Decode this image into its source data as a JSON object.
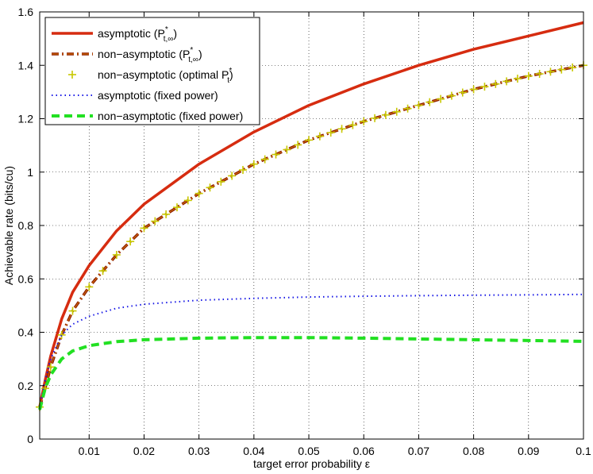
{
  "chart_data": {
    "type": "line",
    "xlabel": "target error probability ε",
    "ylabel": "Achievable rate (bits/cu)",
    "xlim": [
      0.001,
      0.1
    ],
    "ylim": [
      0,
      1.6
    ],
    "grid": true,
    "grid_style": "dotted",
    "legend_position": "top-left",
    "x_ticks": [
      0.01,
      0.02,
      0.03,
      0.04,
      0.05,
      0.06,
      0.07,
      0.08,
      0.09,
      0.1
    ],
    "x_tick_labels": [
      "0.01",
      "0.02",
      "0.03",
      "0.04",
      "0.05",
      "0.06",
      "0.07",
      "0.08",
      "0.09",
      "0.1"
    ],
    "y_ticks": [
      0,
      0.2,
      0.4,
      0.6,
      0.8,
      1.0,
      1.2,
      1.4,
      1.6
    ],
    "y_tick_labels": [
      "0",
      "0.2",
      "0.4",
      "0.6",
      "0.8",
      "1",
      "1.2",
      "1.4",
      "1.6"
    ],
    "series": [
      {
        "name": "asymptotic (P*t,∞)",
        "legend_main": "asymptotic (P",
        "legend_sup": "*",
        "legend_sub": "t,∞",
        "legend_tail": ")",
        "color": "#d62c10",
        "style": "solid",
        "x": [
          0.001,
          0.002,
          0.003,
          0.005,
          0.007,
          0.01,
          0.015,
          0.02,
          0.03,
          0.04,
          0.05,
          0.06,
          0.07,
          0.08,
          0.09,
          0.1
        ],
        "values": [
          0.12,
          0.22,
          0.31,
          0.45,
          0.55,
          0.65,
          0.78,
          0.88,
          1.03,
          1.15,
          1.25,
          1.33,
          1.4,
          1.46,
          1.51,
          1.56
        ]
      },
      {
        "name": "non-asymptotic (P*t,∞)",
        "legend_main": "non−asymptotic (P",
        "legend_sup": "*",
        "legend_sub": "t,∞",
        "legend_tail": ")",
        "color": "#8b1a00",
        "accent": "#cc6a00",
        "style": "dashdot",
        "x": [
          0.001,
          0.002,
          0.003,
          0.005,
          0.007,
          0.01,
          0.015,
          0.02,
          0.03,
          0.04,
          0.05,
          0.06,
          0.07,
          0.08,
          0.09,
          0.1
        ],
        "values": [
          0.12,
          0.19,
          0.27,
          0.39,
          0.48,
          0.57,
          0.69,
          0.79,
          0.92,
          1.03,
          1.12,
          1.19,
          1.25,
          1.31,
          1.36,
          1.4
        ]
      },
      {
        "name": "non-asymptotic (optimal P*t)",
        "legend_main": "non−asymptotic (optimal P",
        "legend_sup": "*",
        "legend_sub": "t",
        "legend_tail": ")",
        "color": "#c8c800",
        "style": "marker-plus",
        "x": [
          0.001,
          0.002,
          0.003,
          0.005,
          0.007,
          0.01,
          0.015,
          0.02,
          0.03,
          0.04,
          0.05,
          0.06,
          0.07,
          0.08,
          0.09,
          0.1
        ],
        "values": [
          0.12,
          0.19,
          0.27,
          0.39,
          0.48,
          0.57,
          0.69,
          0.79,
          0.92,
          1.03,
          1.12,
          1.19,
          1.25,
          1.31,
          1.36,
          1.4
        ]
      },
      {
        "name": "asymptotic (fixed power)",
        "legend_main": "asymptotic (fixed power)",
        "legend_sup": "",
        "legend_sub": "",
        "legend_tail": "",
        "color": "#1a1ae6",
        "style": "dotted",
        "x": [
          0.001,
          0.002,
          0.003,
          0.005,
          0.007,
          0.01,
          0.015,
          0.02,
          0.03,
          0.04,
          0.05,
          0.06,
          0.07,
          0.08,
          0.09,
          0.1
        ],
        "values": [
          0.12,
          0.22,
          0.3,
          0.39,
          0.43,
          0.46,
          0.49,
          0.505,
          0.52,
          0.527,
          0.532,
          0.535,
          0.537,
          0.539,
          0.54,
          0.542
        ]
      },
      {
        "name": "non-asymptotic (fixed power)",
        "legend_main": "non−asymptotic (fixed power)",
        "legend_sup": "",
        "legend_sub": "",
        "legend_tail": "",
        "color": "#22e022",
        "style": "dashed",
        "x": [
          0.001,
          0.002,
          0.003,
          0.005,
          0.007,
          0.01,
          0.015,
          0.02,
          0.03,
          0.04,
          0.05,
          0.06,
          0.07,
          0.08,
          0.09,
          0.1
        ],
        "values": [
          0.11,
          0.19,
          0.24,
          0.3,
          0.33,
          0.35,
          0.365,
          0.372,
          0.378,
          0.38,
          0.38,
          0.378,
          0.375,
          0.372,
          0.369,
          0.366
        ]
      }
    ]
  }
}
